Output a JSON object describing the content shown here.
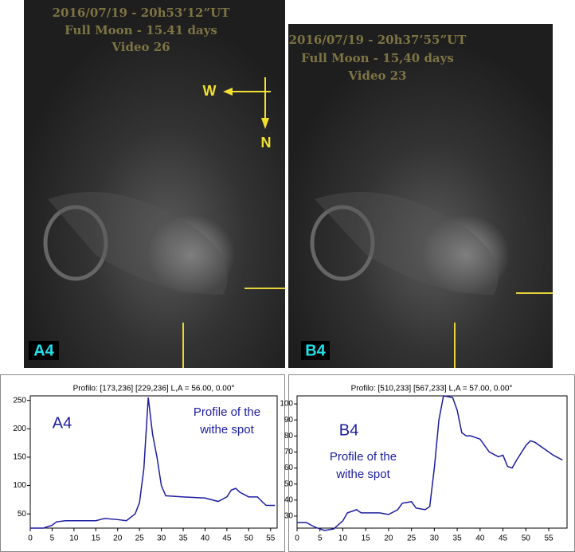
{
  "images": [
    {
      "caption": [
        "2016/07/19 - 20h53’12”UT",
        "Full Moon - 15.41 days",
        "Video 26"
      ],
      "label": "A4",
      "compass": {
        "west": "W",
        "north": "N"
      }
    },
    {
      "caption": [
        "2016/07/19 - 20h37’55”UT",
        "Full Moon - 15,40 days",
        "Video 23"
      ],
      "label": "B4"
    }
  ],
  "chart_data": [
    {
      "type": "line",
      "title": "Profilo: [173,236] [229,236]  L,A =  56.00, 0.00°",
      "annotations": [
        "A4",
        "Profile of the",
        "withe spot"
      ],
      "x": [
        0,
        3,
        5,
        6,
        8,
        12,
        15,
        17,
        20,
        22,
        24,
        25,
        26,
        27,
        28,
        29,
        30,
        31,
        35,
        40,
        43,
        45,
        46,
        47,
        48,
        50,
        52,
        53,
        54,
        56
      ],
      "series": [
        {
          "color": "#1c1ca0",
          "values": [
            25,
            25,
            30,
            36,
            38,
            38,
            38,
            42,
            40,
            38,
            50,
            70,
            130,
            255,
            190,
            150,
            100,
            82,
            80,
            78,
            72,
            80,
            92,
            95,
            88,
            80,
            80,
            72,
            65,
            65
          ]
        }
      ],
      "xlim": [
        0,
        56.5
      ],
      "ylim": [
        25,
        258
      ],
      "xticks": [
        0,
        5,
        10,
        15,
        20,
        25,
        30,
        35,
        40,
        45,
        50,
        55
      ],
      "yticks": [
        50,
        100,
        150,
        200,
        250
      ]
    },
    {
      "type": "line",
      "title": "Profilo: [510,233] [567,233]  L,A =  57.00, 0.00°",
      "annotations": [
        "B4",
        "Profile of the",
        "withe spot"
      ],
      "x": [
        0,
        2,
        4,
        6,
        8,
        10,
        11,
        13,
        14,
        18,
        20,
        22,
        23,
        25,
        26,
        28,
        29,
        30,
        31,
        32,
        34,
        35,
        36,
        37,
        38,
        40,
        42,
        44,
        45,
        46,
        47,
        48,
        50,
        51,
        52,
        54,
        56,
        58
      ],
      "series": [
        {
          "color": "#1c1ca0",
          "values": [
            26,
            26,
            23,
            21,
            22,
            27,
            32,
            34,
            32,
            32,
            31,
            34,
            38,
            39,
            35,
            34,
            36,
            60,
            90,
            105,
            104,
            96,
            82,
            80,
            80,
            78,
            70,
            67,
            68,
            61,
            60,
            65,
            74,
            77,
            76,
            72,
            68,
            65
          ]
        }
      ],
      "xlim": [
        0,
        59
      ],
      "ylim": [
        22.5,
        105
      ],
      "xticks": [
        0,
        5,
        10,
        15,
        20,
        25,
        30,
        35,
        40,
        45,
        50,
        55
      ],
      "yticks": [
        30,
        40,
        50,
        60,
        70,
        80,
        90,
        100
      ]
    }
  ]
}
